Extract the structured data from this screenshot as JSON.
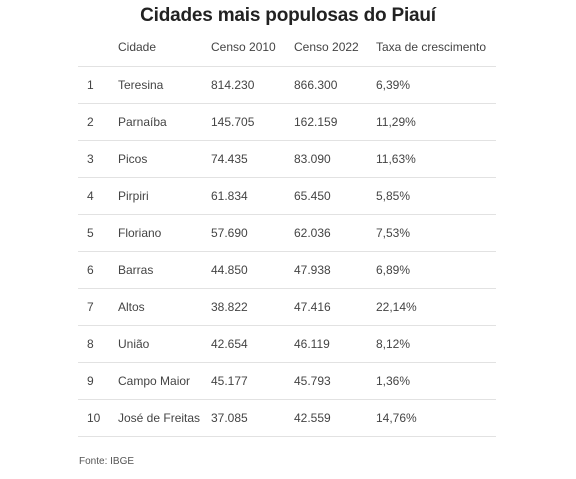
{
  "title": "Cidades mais populosas do Piauí",
  "table": {
    "headers": [
      "",
      "Cidade",
      "Censo 2010",
      "Censo 2022",
      "Taxa de crescimento"
    ],
    "rows": [
      [
        "1",
        "Teresina",
        "814.230",
        "866.300",
        "6,39%"
      ],
      [
        "2",
        "Parnaíba",
        "145.705",
        "162.159",
        "11,29%"
      ],
      [
        "3",
        "Picos",
        "74.435",
        "83.090",
        "11,63%"
      ],
      [
        "4",
        "Pirpiri",
        "61.834",
        "65.450",
        "5,85%"
      ],
      [
        "5",
        "Floriano",
        "57.690",
        "62.036",
        "7,53%"
      ],
      [
        "6",
        "Barras",
        "44.850",
        "47.938",
        "6,89%"
      ],
      [
        "7",
        "Altos",
        "38.822",
        "47.416",
        "22,14%"
      ],
      [
        "8",
        "União",
        "42.654",
        "46.119",
        "8,12%"
      ],
      [
        "9",
        "Campo Maior",
        "45.177",
        "45.793",
        "1,36%"
      ],
      [
        "10",
        "José de Freitas",
        "37.085",
        "42.559",
        "14,76%"
      ]
    ]
  },
  "source": "Fonte: IBGE"
}
